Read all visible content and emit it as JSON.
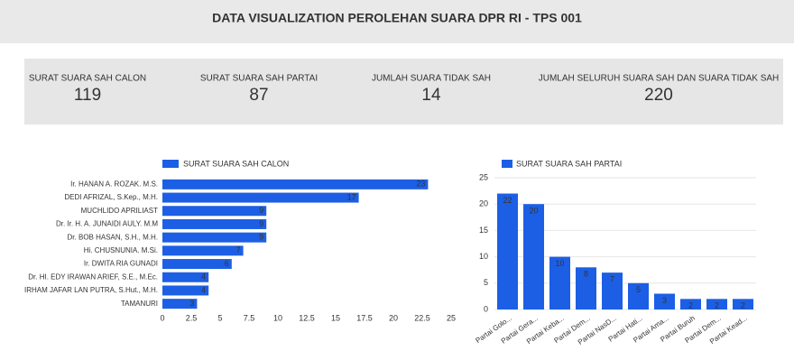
{
  "header": {
    "title": "DATA VISUALIZATION PEROLEHAN SUARA DPR RI - TPS 001"
  },
  "scorecards": [
    {
      "label": "SURAT SUARA SAH CALON",
      "value": 119
    },
    {
      "label": "SURAT SUARA SAH PARTAI",
      "value": 87
    },
    {
      "label": "JUMLAH SUARA TIDAK SAH",
      "value": 14
    },
    {
      "label": "JUMLAH SELURUH SUARA SAH DAN SUARA TIDAK SAH",
      "value": 220
    }
  ],
  "chart_data": [
    {
      "type": "hbar",
      "categories": [
        "Ir. HANAN A. ROZAK. M.S.",
        "DEDI AFRIZAL, S.Kep., M.H.",
        "MUCHLIDO APRILIAST",
        "Dr. Ir. H. A. JUNAIDI AULY. M.M",
        "Dr. BOB HASAN, S.H., M.H.",
        "Hi. CHUSNUNIA. M.Si.",
        "Ir. DWITA RIA GUNADI",
        "Dr. HI. EDY IRAWAN ARIEF, S.E., M.Ec.",
        "IRHAM JAFAR LAN PUTRA, S.Hut., M.H.",
        "TAMANURI"
      ],
      "series": [
        {
          "name": "SURAT SUARA SAH CALON",
          "color": "#1c5fe5",
          "values": [
            23,
            17,
            9,
            9,
            9,
            7,
            6,
            4,
            4,
            3
          ]
        }
      ],
      "xlim": [
        0,
        25
      ],
      "xticks": [
        0,
        2.5,
        5,
        7.5,
        10,
        12.5,
        15,
        17.5,
        20,
        22.5,
        25
      ],
      "grid": false
    },
    {
      "type": "bar",
      "categories": [
        "Partai Golo...",
        "Partai Gera...",
        "Partai Keba...",
        "Partai Dem...",
        "Partai NasD...",
        "Partai Hati...",
        "Partai Ama...",
        "Partai Buruh",
        "Partai Dem...",
        "Partai Kead..."
      ],
      "series": [
        {
          "name": "SURAT SUARA SAH PARTAI",
          "color": "#1c5fe5",
          "values": [
            22,
            20,
            10,
            8,
            7,
            5,
            3,
            2,
            2,
            2
          ]
        }
      ],
      "ylim": [
        0,
        25
      ],
      "yticks": [
        0,
        5,
        10,
        15,
        20,
        25
      ],
      "grid": true
    }
  ]
}
